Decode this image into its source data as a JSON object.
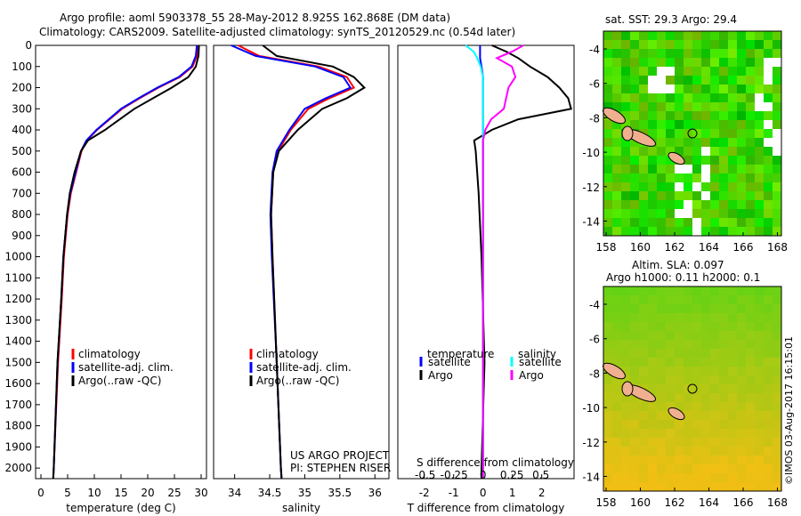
{
  "title_line1": "Argo profile: aoml 5903378_55 28-May-2012 8.925S 162.868E (DM data)",
  "title_line2": "Climatology: CARS2009. Satellite-adjusted climatology: synTS_20120529.nc (0.54d later)",
  "colors": {
    "climatology": "#ff0000",
    "satellite": "#0000ff",
    "argo": "#000000",
    "sal_sat": "#00ffff",
    "sal_argo": "#ff00ff"
  },
  "chart_data": [
    {
      "type": "line",
      "xlabel": "temperature (deg C)",
      "xlim": [
        -1,
        31
      ],
      "ylim": [
        2050,
        0
      ],
      "xticks": [
        "0",
        "5",
        "10",
        "15",
        "20",
        "25",
        "30"
      ],
      "yticks": [
        "0",
        "100",
        "200",
        "300",
        "400",
        "500",
        "600",
        "700",
        "800",
        "900",
        "1000",
        "1100",
        "1200",
        "1300",
        "1400",
        "1500",
        "1600",
        "1700",
        "1800",
        "1900",
        "2000"
      ],
      "legend": [
        "climatology",
        "satellite-adj. clim.",
        "Argo(..raw -QC)"
      ],
      "depth": [
        0,
        50,
        100,
        150,
        200,
        250,
        300,
        400,
        450,
        500,
        600,
        700,
        800,
        1000,
        1200,
        1500,
        2000,
        2050
      ],
      "series": [
        {
          "name": "climatology",
          "values": [
            29.3,
            29.2,
            28.4,
            26,
            22,
            18.5,
            15.2,
            10.5,
            8.6,
            7.6,
            6.6,
            5.6,
            5.0,
            4.3,
            3.9,
            3.2,
            2.4,
            2.3
          ]
        },
        {
          "name": "satellite-adj. clim.",
          "values": [
            29.2,
            29.0,
            28.2,
            25.8,
            21.8,
            18.3,
            15.0,
            10.4,
            8.5,
            7.5,
            6.5,
            5.5,
            4.9,
            4.2,
            3.8,
            3.1,
            2.4,
            2.3
          ]
        },
        {
          "name": "Argo(..raw -QC)",
          "values": [
            29.6,
            29.5,
            29.0,
            27.6,
            24.5,
            21,
            17.5,
            12,
            8.8,
            7.5,
            6.3,
            5.4,
            4.9,
            4.2,
            3.8,
            3.1,
            2.4,
            2.3
          ]
        }
      ]
    },
    {
      "type": "line",
      "xlabel": "salinity",
      "xlim": [
        33.7,
        36.2
      ],
      "ylim": [
        2050,
        0
      ],
      "xticks": [
        "34",
        "34.5",
        "35",
        "35.5",
        "36"
      ],
      "legend": [
        "climatology",
        "satellite-adj. clim.",
        "Argo(..raw -QC)"
      ],
      "annotation": [
        "US ARGO PROJECT",
        "PI: STEPHEN RISER"
      ],
      "depth": [
        0,
        50,
        100,
        150,
        200,
        250,
        300,
        400,
        500,
        600,
        800,
        1000,
        1500,
        2000,
        2050
      ],
      "series": [
        {
          "name": "climatology",
          "values": [
            34.05,
            34.35,
            35.2,
            35.6,
            35.7,
            35.35,
            35.05,
            34.8,
            34.62,
            34.55,
            34.52,
            34.54,
            34.6,
            34.66,
            34.67
          ]
        },
        {
          "name": "satellite-adj. clim.",
          "values": [
            33.95,
            34.3,
            35.15,
            35.55,
            35.65,
            35.3,
            35.0,
            34.78,
            34.6,
            34.54,
            34.51,
            34.53,
            34.6,
            34.66,
            34.67
          ]
        },
        {
          "name": "Argo(..raw -QC)",
          "values": [
            34.4,
            34.6,
            35.4,
            35.7,
            35.85,
            35.6,
            35.25,
            34.9,
            34.63,
            34.55,
            34.52,
            34.54,
            34.6,
            34.66,
            34.67
          ]
        }
      ]
    },
    {
      "type": "line",
      "xlabel": "T difference from climatology",
      "xlabel2": "S difference from climatology",
      "xlim": [
        -2.9,
        3.1
      ],
      "ylim": [
        2050,
        0
      ],
      "xticks": [
        "-2",
        "-1",
        "0",
        "1",
        "2"
      ],
      "xticks2": [
        "-0.5",
        "-0.25",
        "0",
        "0.25",
        "0.5"
      ],
      "legend_temp_title": "temperature",
      "legend_sal_title": "salinity",
      "legend": [
        "satellite",
        "Argo",
        "satellite",
        "Argo"
      ],
      "depth": [
        0,
        30,
        60,
        100,
        150,
        200,
        250,
        300,
        350,
        400,
        450,
        500,
        700,
        1000,
        1500,
        2000,
        2050
      ],
      "series": [
        {
          "name": "T satellite",
          "values": [
            -0.1,
            -0.1,
            -0.1,
            -0.05,
            0,
            0,
            0,
            0,
            0,
            0,
            0,
            0,
            0,
            0,
            0,
            0,
            0
          ]
        },
        {
          "name": "T Argo",
          "values": [
            0.3,
            0.8,
            1.2,
            1.6,
            2.2,
            2.6,
            2.9,
            3.0,
            1.2,
            0.3,
            -0.3,
            -0.25,
            -0.15,
            -0.05,
            0.05,
            -0.05,
            -0.05
          ]
        },
        {
          "name": "S satellite",
          "values": [
            -0.15,
            -0.08,
            -0.05,
            -0.02,
            0,
            0,
            0,
            0,
            0,
            0,
            0,
            0,
            0,
            0,
            0,
            0,
            0
          ]
        },
        {
          "name": "S Argo",
          "values": [
            0.35,
            0.25,
            0.12,
            0.25,
            0.28,
            0.22,
            0.2,
            0.18,
            0.07,
            0.02,
            0.0,
            0.0,
            0.0,
            0.0,
            0.0,
            0.0,
            0.0
          ]
        }
      ]
    }
  ],
  "map1": {
    "title": "sat. SST: 29.3 Argo: 29.4",
    "xticks": [
      "158",
      "160",
      "162",
      "164",
      "166",
      "168"
    ],
    "yticks": [
      "-4",
      "-6",
      "-8",
      "-10",
      "-12",
      "-14"
    ]
  },
  "map2": {
    "title1": "Altim. SLA: 0.097",
    "title2": "Argo h1000: 0.11 h2000: 0.1",
    "xticks": [
      "158",
      "160",
      "162",
      "164",
      "166",
      "168"
    ],
    "yticks": [
      "-4",
      "-6",
      "-8",
      "-10",
      "-12",
      "-14"
    ]
  },
  "credit": "©IMOS 03-Aug-2017 16:15:01"
}
